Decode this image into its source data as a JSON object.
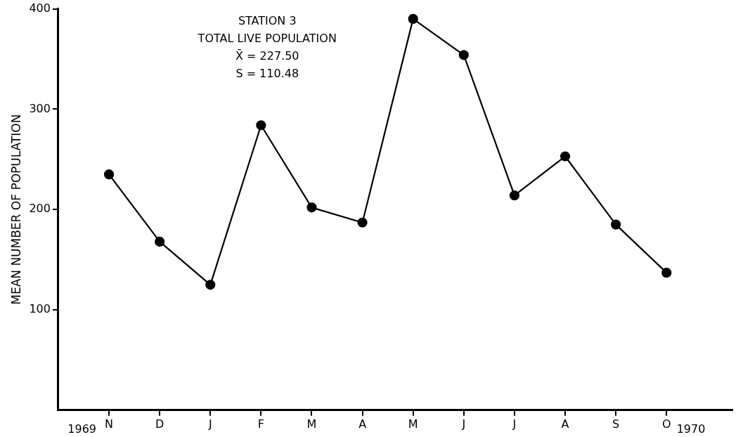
{
  "chart_data": {
    "type": "line",
    "title": "STATION 3",
    "subtitle": "TOTAL LIVE POPULATION",
    "ylabel": "MEAN NUMBER OF POPULATION",
    "annotations": [
      "X̄ = 227.50",
      "S = 110.48",
      "1969",
      "1970"
    ],
    "categories": [
      "N",
      "D",
      "J",
      "F",
      "M",
      "A",
      "M",
      "J",
      "J",
      "A",
      "S",
      "O"
    ],
    "series": [
      {
        "color": "#000000",
        "values": [
          235,
          168,
          125,
          284,
          202,
          187,
          390,
          354,
          214,
          253,
          185,
          137
        ]
      }
    ],
    "ylim": [
      0,
      400
    ],
    "yticks": [
      100,
      200,
      300,
      400
    ],
    "grid": false,
    "legend": false,
    "marker": "circle",
    "line_style": "solid"
  }
}
